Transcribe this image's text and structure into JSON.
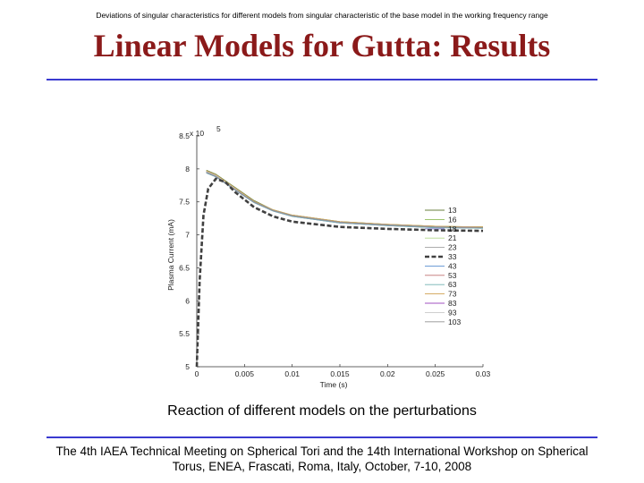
{
  "slide": {
    "top_note": "Deviations of singular characteristics for different models from singular characteristic of the base model in the working frequency range",
    "title": "Linear Models for Gutta: Results",
    "caption": "Reaction of different models on the perturbations",
    "footer_line1": "The 4th IAEA Technical Meeting on Spherical Tori and the 14th International Workshop on Spherical",
    "footer_line2": "Torus, ENEA, Frascati, Roma, Italy, October, 7-10, 2008"
  },
  "colors": {
    "title": "#8b1a1a",
    "rule": "#3a3ad0"
  },
  "chart_data": {
    "type": "line",
    "title": "",
    "xlabel": "Time (s)",
    "ylabel": "Plasma Current (mA)",
    "scale_note": "x 10",
    "scale_exponent": "5",
    "xlim": [
      0,
      0.03
    ],
    "ylim": [
      5,
      8.5
    ],
    "xticks": [
      0,
      0.005,
      0.01,
      0.015,
      0.02,
      0.025,
      0.03
    ],
    "xtick_labels": [
      "0",
      "0.005",
      "0.01",
      "0.015",
      "0.02",
      "0.025",
      "0.03"
    ],
    "yticks": [
      5,
      5.5,
      6,
      6.5,
      7,
      7.5,
      8,
      8.5
    ],
    "ytick_labels": [
      "5",
      "5.5",
      "6",
      "6.5",
      "7",
      "7.5",
      "8",
      "8.5"
    ],
    "legend_position": "right",
    "series": [
      {
        "name": "13",
        "color": "#6a7f3c",
        "style": "solid",
        "x": [
          0.001,
          0.002,
          0.004,
          0.006,
          0.008,
          0.01,
          0.015,
          0.02,
          0.025,
          0.03
        ],
        "y": [
          7.98,
          7.92,
          7.72,
          7.52,
          7.38,
          7.3,
          7.2,
          7.16,
          7.13,
          7.12
        ]
      },
      {
        "name": "16",
        "color": "#8fbc5a",
        "style": "solid",
        "x": [
          0.001,
          0.002,
          0.004,
          0.006,
          0.008,
          0.01,
          0.015,
          0.02,
          0.025,
          0.03
        ],
        "y": [
          7.96,
          7.9,
          7.7,
          7.5,
          7.37,
          7.29,
          7.19,
          7.15,
          7.12,
          7.11
        ]
      },
      {
        "name": "18",
        "color": "#7070c0",
        "style": "solid",
        "x": [
          0.001,
          0.002,
          0.004,
          0.006,
          0.008,
          0.01,
          0.015,
          0.02,
          0.025,
          0.03
        ],
        "y": [
          7.94,
          7.88,
          7.68,
          7.49,
          7.36,
          7.28,
          7.18,
          7.14,
          7.11,
          7.1
        ]
      },
      {
        "name": "21",
        "color": "#b5d98a",
        "style": "solid",
        "x": [
          0.001,
          0.002,
          0.004,
          0.006,
          0.008,
          0.01,
          0.015,
          0.02,
          0.025,
          0.03
        ],
        "y": [
          7.97,
          7.91,
          7.71,
          7.51,
          7.38,
          7.3,
          7.2,
          7.16,
          7.13,
          7.12
        ]
      },
      {
        "name": "23",
        "color": "#a0a0a0",
        "style": "solid",
        "x": [
          0.001,
          0.002,
          0.004,
          0.006,
          0.008,
          0.01,
          0.015,
          0.02,
          0.025,
          0.03
        ],
        "y": [
          7.95,
          7.89,
          7.69,
          7.5,
          7.37,
          7.29,
          7.19,
          7.15,
          7.12,
          7.11
        ]
      },
      {
        "name": "33",
        "color": "#404040",
        "style": "dashed",
        "x": [
          0,
          0.0003,
          0.0007,
          0.0012,
          0.002,
          0.003,
          0.004,
          0.006,
          0.008,
          0.01,
          0.015,
          0.02,
          0.025,
          0.03
        ],
        "y": [
          5.0,
          6.3,
          7.3,
          7.7,
          7.85,
          7.8,
          7.65,
          7.42,
          7.28,
          7.2,
          7.12,
          7.09,
          7.07,
          7.06
        ]
      },
      {
        "name": "43",
        "color": "#5a8fd0",
        "style": "solid",
        "x": [
          0.001,
          0.002,
          0.004,
          0.006,
          0.008,
          0.01,
          0.015,
          0.02,
          0.025,
          0.03
        ],
        "y": [
          7.96,
          7.9,
          7.7,
          7.5,
          7.37,
          7.29,
          7.19,
          7.15,
          7.12,
          7.11
        ]
      },
      {
        "name": "53",
        "color": "#c07070",
        "style": "solid",
        "x": [
          0.001,
          0.002,
          0.004,
          0.006,
          0.008,
          0.01,
          0.015,
          0.02,
          0.025,
          0.03
        ],
        "y": [
          7.95,
          7.89,
          7.69,
          7.5,
          7.37,
          7.29,
          7.19,
          7.15,
          7.12,
          7.11
        ]
      },
      {
        "name": "63",
        "color": "#70b0b0",
        "style": "solid",
        "x": [
          0.001,
          0.002,
          0.004,
          0.006,
          0.008,
          0.01,
          0.015,
          0.02,
          0.025,
          0.03
        ],
        "y": [
          7.94,
          7.88,
          7.68,
          7.49,
          7.36,
          7.28,
          7.18,
          7.14,
          7.11,
          7.1
        ]
      },
      {
        "name": "73",
        "color": "#d0a050",
        "style": "solid",
        "x": [
          0.001,
          0.002,
          0.004,
          0.006,
          0.008,
          0.01,
          0.015,
          0.02,
          0.025,
          0.03
        ],
        "y": [
          7.97,
          7.91,
          7.71,
          7.51,
          7.38,
          7.3,
          7.2,
          7.16,
          7.13,
          7.12
        ]
      },
      {
        "name": "83",
        "color": "#a050c0",
        "style": "solid",
        "x": [
          0.001,
          0.002,
          0.004,
          0.006,
          0.008,
          0.01,
          0.015,
          0.02,
          0.025,
          0.03
        ],
        "y": [
          7.95,
          7.89,
          7.69,
          7.5,
          7.37,
          7.29,
          7.19,
          7.15,
          7.12,
          7.11
        ]
      },
      {
        "name": "93",
        "color": "#c8c8c8",
        "style": "solid",
        "x": [
          0.001,
          0.002,
          0.004,
          0.006,
          0.008,
          0.01,
          0.015,
          0.02,
          0.025,
          0.03
        ],
        "y": [
          7.96,
          7.9,
          7.7,
          7.5,
          7.37,
          7.29,
          7.19,
          7.15,
          7.12,
          7.11
        ]
      },
      {
        "name": "103",
        "color": "#909090",
        "style": "solid",
        "x": [
          0.001,
          0.002,
          0.004,
          0.006,
          0.008,
          0.01,
          0.015,
          0.02,
          0.025,
          0.03
        ],
        "y": [
          7.95,
          7.89,
          7.69,
          7.5,
          7.37,
          7.29,
          7.19,
          7.15,
          7.12,
          7.11
        ]
      }
    ]
  }
}
